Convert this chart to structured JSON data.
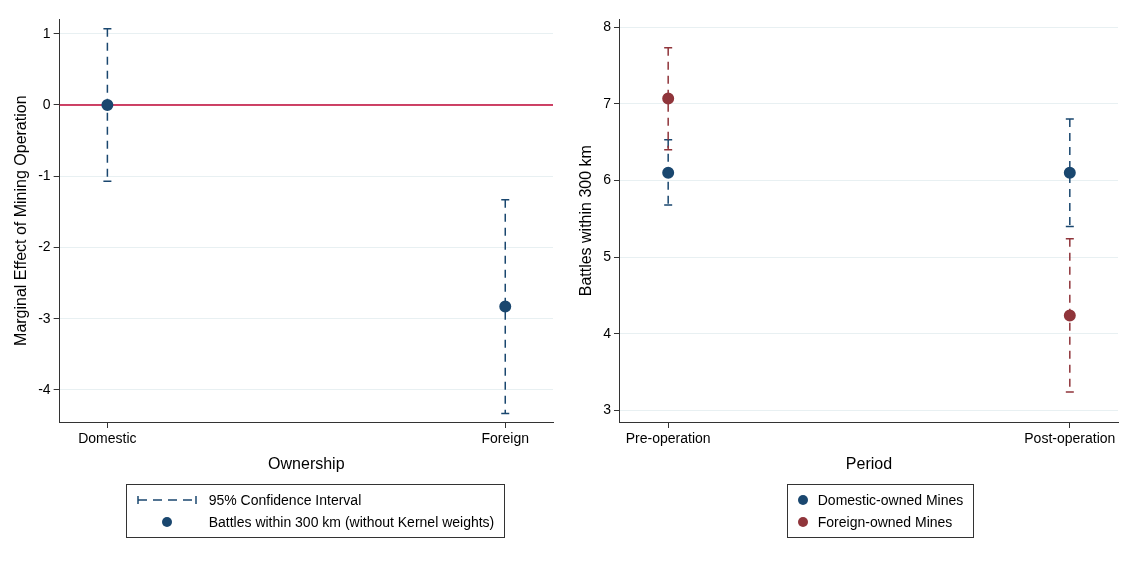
{
  "chart_data": [
    {
      "type": "scatter",
      "xlabel": "Ownership",
      "ylabel": "Marginal Effect of Mining Operation",
      "categories": [
        "Domestic",
        "Foreign"
      ],
      "series": [
        {
          "name": "Battles within 300 km (without Kernel weights)",
          "color": "#1a476f",
          "values": [
            0,
            -2.83
          ],
          "errors": [
            [
              -1.07,
              1.07
            ],
            [
              -4.33,
              -1.33
            ]
          ]
        }
      ],
      "ylim": [
        -4.45,
        1.2
      ],
      "yticks": [
        1,
        0,
        -1,
        -2,
        -3,
        -4
      ],
      "grid": "y",
      "marker": "circle",
      "legend": "bottom",
      "ref_lines": [
        {
          "axis": "y",
          "value": 0,
          "color": "#c10534"
        }
      ],
      "annotations": [
        "95% Confidence Interval"
      ]
    },
    {
      "type": "scatter",
      "xlabel": "Period",
      "ylabel": "Battles within 300 km",
      "categories": [
        "Pre-operation",
        "Post-operation"
      ],
      "series": [
        {
          "name": "Domestic-owned Mines",
          "color": "#1a476f",
          "values": [
            6.1,
            6.1
          ],
          "errors": [
            [
              5.68,
              6.53
            ],
            [
              5.4,
              6.8
            ]
          ]
        },
        {
          "name": "Foreign-owned Mines",
          "color": "#90353b",
          "values": [
            7.07,
            4.24
          ],
          "errors": [
            [
              6.4,
              7.73
            ],
            [
              3.24,
              5.24
            ]
          ]
        }
      ],
      "ylim": [
        2.85,
        8.1
      ],
      "yticks": [
        3,
        4,
        5,
        6,
        7,
        8
      ],
      "grid": "y",
      "marker": "circle",
      "legend": "bottom"
    }
  ]
}
